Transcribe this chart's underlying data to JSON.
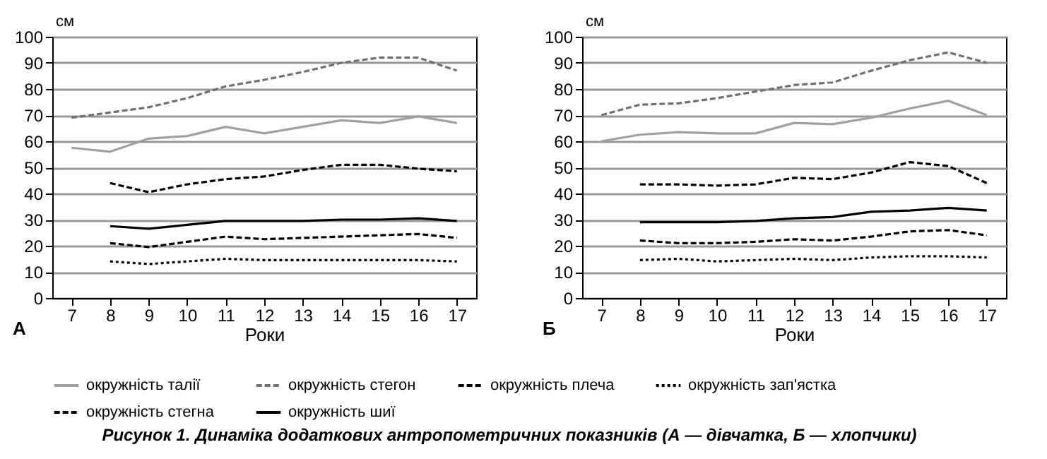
{
  "chart_data": [
    {
      "type": "line",
      "xlabel": "Роки",
      "ylabel": "см",
      "annotations": [
        "А",
        "Рисунок 1. Динаміка додаткових антропометричних показників (А — дівчатка, Б — хлопчики)"
      ],
      "x": [
        7,
        8,
        9,
        10,
        11,
        12,
        13,
        14,
        15,
        16,
        17
      ],
      "xlim": [
        6.5,
        17.5
      ],
      "xticks": [
        7,
        8,
        9,
        10,
        11,
        12,
        13,
        14,
        15,
        16,
        17
      ],
      "ylim": [
        0,
        100
      ],
      "yticks": [
        0,
        10,
        20,
        30,
        40,
        50,
        60,
        70,
        80,
        90,
        100
      ],
      "grid": "y",
      "legend": "bottom",
      "series": [
        {
          "name": "окружність талії",
          "color": "#a0a0a0",
          "line_style": "solid",
          "values": [
            57.5,
            56,
            61,
            62,
            65.5,
            63,
            65.5,
            68,
            67,
            69.5,
            67
          ]
        },
        {
          "name": "окружність стегон",
          "color": "#707070",
          "line_style": "dashed",
          "values": [
            69,
            71,
            73,
            76.5,
            81,
            83.5,
            86.5,
            90,
            92,
            92,
            87
          ]
        },
        {
          "name": "окружність плеча",
          "color": "#000000",
          "line_style": "dashed",
          "values": [
            null,
            21,
            19.5,
            21.5,
            23.5,
            22.5,
            23,
            23.5,
            24,
            24.5,
            23
          ]
        },
        {
          "name": "окружність зап'ястка",
          "color": "#000000",
          "line_style": "dotted",
          "values": [
            null,
            14,
            13,
            14,
            15,
            14.5,
            14.5,
            14.5,
            14.5,
            14.5,
            14
          ]
        },
        {
          "name": "окружність стегна",
          "color": "#000000",
          "line_style": "dashed",
          "values": [
            null,
            44,
            40.5,
            43.5,
            45.5,
            46.5,
            49,
            51,
            51,
            49.5,
            48.5
          ]
        },
        {
          "name": "окружність шиї",
          "color": "#000000",
          "line_style": "solid",
          "values": [
            null,
            27.5,
            26.5,
            28,
            29.5,
            29.5,
            29.5,
            30,
            30,
            30.5,
            29.5
          ]
        }
      ]
    },
    {
      "type": "line",
      "xlabel": "Роки",
      "ylabel": "см",
      "annotations": [
        "Б"
      ],
      "x": [
        7,
        8,
        9,
        10,
        11,
        12,
        13,
        14,
        15,
        16,
        17
      ],
      "xlim": [
        6.5,
        17.5
      ],
      "xticks": [
        7,
        8,
        9,
        10,
        11,
        12,
        13,
        14,
        15,
        16,
        17
      ],
      "ylim": [
        0,
        100
      ],
      "yticks": [
        0,
        10,
        20,
        30,
        40,
        50,
        60,
        70,
        80,
        90,
        100
      ],
      "grid": "y",
      "legend": "bottom",
      "series": [
        {
          "name": "окружність талії",
          "color": "#a0a0a0",
          "line_style": "solid",
          "values": [
            60,
            62.5,
            63.5,
            63,
            63,
            67,
            66.5,
            69,
            72.5,
            75.5,
            70
          ]
        },
        {
          "name": "окружність стегон",
          "color": "#707070",
          "line_style": "dashed",
          "values": [
            70,
            74,
            74.5,
            76.5,
            79,
            81.5,
            82.5,
            87,
            91,
            94,
            90
          ]
        },
        {
          "name": "окружність плеча",
          "color": "#000000",
          "line_style": "dashed",
          "values": [
            null,
            22,
            21,
            21,
            21.5,
            22.5,
            22,
            23.5,
            25.5,
            26,
            24
          ]
        },
        {
          "name": "окружність зап'ястка",
          "color": "#000000",
          "line_style": "dotted",
          "values": [
            null,
            14.5,
            15,
            14,
            14.5,
            15,
            14.5,
            15.5,
            16,
            16,
            15.5
          ]
        },
        {
          "name": "окружність стегна",
          "color": "#000000",
          "line_style": "dashed",
          "values": [
            null,
            43.5,
            43.5,
            43,
            43.5,
            46,
            45.5,
            48,
            52,
            50.5,
            44
          ]
        },
        {
          "name": "окружність шиї",
          "color": "#000000",
          "line_style": "solid",
          "values": [
            null,
            29,
            29,
            29,
            29.5,
            30.5,
            31,
            33,
            33.5,
            34.5,
            33.5
          ]
        }
      ]
    }
  ]
}
